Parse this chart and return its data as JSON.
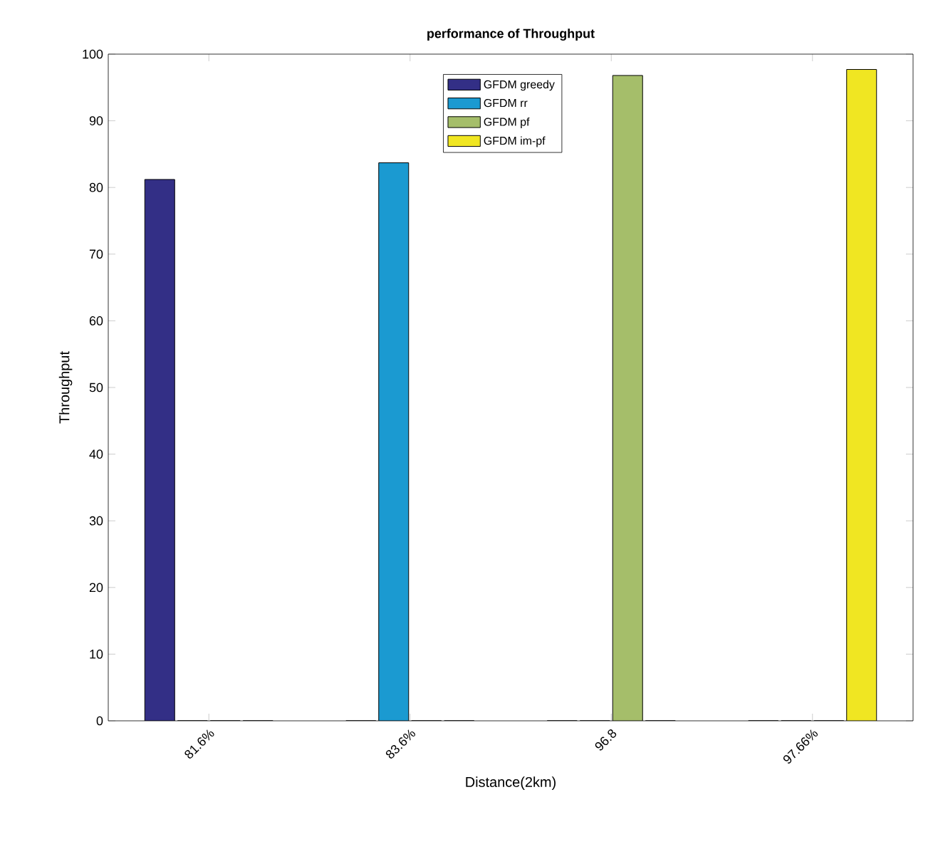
{
  "chart_data": {
    "type": "bar",
    "title": "performance of Throughput",
    "xlabel": "Distance(2km)",
    "ylabel": "Throughput",
    "categories": [
      "81.6%",
      "83.6%",
      "96.8",
      "97.66%"
    ],
    "series": [
      {
        "name": "GFDM greedy",
        "color": "#332f86",
        "values": [
          81.2,
          0,
          0,
          0
        ]
      },
      {
        "name": "GFDM rr",
        "color": "#1b9ad1",
        "values": [
          0,
          83.7,
          0,
          0
        ]
      },
      {
        "name": "GFDM pf",
        "color": "#a5be6a",
        "values": [
          0,
          0,
          96.8,
          0
        ]
      },
      {
        "name": "GFDM im-pf",
        "color": "#f0e622",
        "values": [
          0,
          0,
          0,
          97.7
        ]
      }
    ],
    "ylim": [
      0,
      100
    ],
    "yticks": [
      0,
      10,
      20,
      30,
      40,
      50,
      60,
      70,
      80,
      90,
      100
    ],
    "legend": "top"
  }
}
